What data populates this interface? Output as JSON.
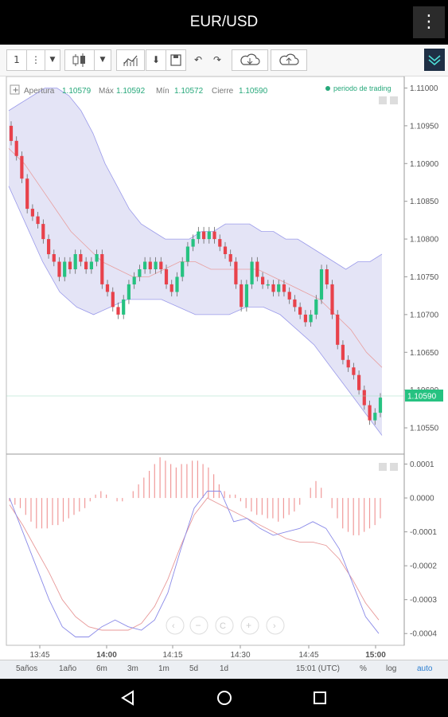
{
  "app": {
    "title": "EUR/USD",
    "menu_icon": "more-vertical-icon"
  },
  "toolbar": {
    "period_label": "1",
    "icons": [
      "period-button",
      "more-icon",
      "dropdown-icon",
      "candle-type-icon",
      "dropdown-icon",
      "indicators-icon",
      "download-icon",
      "save-icon",
      "undo-icon",
      "redo-icon",
      "cloud-download-icon",
      "cloud-upload-icon",
      "collapse-icon"
    ]
  },
  "ohlc": {
    "open_label": "Apertura",
    "open": "1.10579",
    "max_label": "Máx",
    "max": "1.10592",
    "min_label": "Mín",
    "min": "1.10572",
    "close_label": "Cierre",
    "close": "1.10590",
    "session_label": "periodo de trading"
  },
  "price_tag": "1.10590",
  "bottom": {
    "ranges": [
      "5años",
      "1año",
      "6m",
      "3m",
      "1m",
      "5d",
      "1d"
    ],
    "clock": "15:01 (UTC)",
    "percent": "%",
    "log": "log",
    "auto": "auto"
  },
  "colors": {
    "up": "#26c281",
    "down": "#e8424b",
    "band_fill": "#e4e4f6",
    "band_line": "#9b9bea",
    "middle_line": "#e8a0a0",
    "macd_line": "#8a8ae8",
    "signal_line": "#e89a9a",
    "hist": "#f09a9a",
    "price_tag_bg": "#26c281"
  },
  "chart_data": [
    {
      "type": "candlestick",
      "title": "",
      "x_ticks": [
        "13:45",
        "14:00",
        "14:15",
        "14:30",
        "14:45",
        "15:00"
      ],
      "y_ticks": [
        "1.11000",
        "1.10950",
        "1.10900",
        "1.10850",
        "1.10800",
        "1.10750",
        "1.10700",
        "1.10650",
        "1.10600",
        "1.10550"
      ],
      "ylim": [
        1.1053,
        1.1101
      ],
      "grid": false,
      "indicator": "Bollinger Bands",
      "closes": [
        1.1093,
        1.1091,
        1.1088,
        1.1084,
        1.1083,
        1.1082,
        1.108,
        1.1078,
        1.1077,
        1.1075,
        1.1077,
        1.1076,
        1.1078,
        1.1077,
        1.1076,
        1.1077,
        1.1078,
        1.1074,
        1.1073,
        1.1071,
        1.107,
        1.1072,
        1.1074,
        1.1075,
        1.1076,
        1.1077,
        1.1076,
        1.1077,
        1.1076,
        1.1074,
        1.1073,
        1.1075,
        1.1077,
        1.1079,
        1.108,
        1.1081,
        1.108,
        1.1081,
        1.108,
        1.1079,
        1.1078,
        1.1077,
        1.1074,
        1.1071,
        1.1074,
        1.1077,
        1.1075,
        1.1074,
        1.1074,
        1.1073,
        1.1074,
        1.1073,
        1.1072,
        1.1071,
        1.107,
        1.1069,
        1.107,
        1.1072,
        1.1076,
        1.1074,
        1.107,
        1.1066,
        1.1064,
        1.1063,
        1.1062,
        1.106,
        1.1058,
        1.1056,
        1.1057,
        1.1059
      ],
      "upper_band": [
        1.1097,
        1.1098,
        1.1099,
        1.11,
        1.11,
        1.1099,
        1.1097,
        1.1094,
        1.109,
        1.1087,
        1.1084,
        1.1082,
        1.1081,
        1.108,
        1.108,
        1.108,
        1.1081,
        1.1081,
        1.1082,
        1.1082,
        1.1082,
        1.1081,
        1.1081,
        1.108,
        1.108,
        1.1079,
        1.1078,
        1.1077,
        1.1076,
        1.1077,
        1.1077,
        1.1078
      ],
      "middle_band": [
        1.1092,
        1.109,
        1.1087,
        1.1084,
        1.1081,
        1.1079,
        1.1077,
        1.1076,
        1.1075,
        1.1075,
        1.1076,
        1.1077,
        1.1077,
        1.1076,
        1.1076,
        1.1076,
        1.1076,
        1.1075,
        1.1074,
        1.1073,
        1.1072,
        1.107,
        1.1068,
        1.1065,
        1.1063
      ],
      "lower_band": [
        1.1087,
        1.1082,
        1.1077,
        1.1073,
        1.1071,
        1.107,
        1.1071,
        1.1072,
        1.1072,
        1.1072,
        1.1071,
        1.107,
        1.107,
        1.107,
        1.1071,
        1.1071,
        1.107,
        1.1068,
        1.1066,
        1.1063,
        1.106,
        1.1057,
        1.1054
      ]
    },
    {
      "type": "line",
      "title": "",
      "indicator": "MACD",
      "y_ticks": [
        "0.0001",
        "0.0000",
        "-0.0001",
        "-0.0002",
        "-0.0003",
        "-0.0004"
      ],
      "ylim": [
        -0.00043,
        0.00012
      ],
      "grid": false,
      "macd": [
        0.0,
        -0.0001,
        -0.0002,
        -0.0003,
        -0.00038,
        -0.00041,
        -0.00041,
        -0.00038,
        -0.00036,
        -0.00038,
        -0.00039,
        -0.00036,
        -0.00028,
        -0.00015,
        -3e-05,
        2e-05,
        2e-05,
        -7e-05,
        -6e-05,
        -9e-05,
        -0.00011,
        -0.0001,
        -9e-05,
        -7e-05,
        -9e-05,
        -0.00015,
        -0.00025,
        -0.00035,
        -0.0004
      ],
      "signal": [
        -2e-05,
        -8e-05,
        -0.00015,
        -0.00022,
        -0.0003,
        -0.00035,
        -0.00038,
        -0.00039,
        -0.00039,
        -0.00039,
        -0.00037,
        -0.00032,
        -0.00024,
        -0.00014,
        -5e-05,
        0.0,
        -2e-05,
        -4e-05,
        -6e-05,
        -8e-05,
        -0.0001,
        -0.00012,
        -0.00013,
        -0.00013,
        -0.00014,
        -0.00018,
        -0.00024,
        -0.00031,
        -0.00036
      ],
      "histogram": [
        -1e-05,
        -2e-05,
        -3e-05,
        -5e-05,
        -7e-05,
        -9e-05,
        -9e-05,
        -9e-05,
        -8e-05,
        -8e-05,
        -7e-05,
        -6e-05,
        -5e-05,
        -4e-05,
        -3e-05,
        -1e-05,
        1e-05,
        2e-05,
        1e-05,
        0.0,
        -1e-05,
        -1e-05,
        0.0,
        2e-05,
        4e-05,
        6e-05,
        8e-05,
        0.0001,
        0.00012,
        0.00011,
        0.0001,
        9e-05,
        0.0001,
        0.0001,
        0.00011,
        0.00011,
        0.0001,
        9e-05,
        7e-05,
        4e-05,
        2e-05,
        1e-05,
        1e-05,
        -1e-05,
        -3e-05,
        -4e-05,
        -5e-05,
        -5e-05,
        -6e-05,
        -6e-05,
        -7e-05,
        -6e-05,
        -5e-05,
        -4e-05,
        -2e-05,
        0.0,
        3e-05,
        5e-05,
        3e-05,
        0.0,
        -3e-05,
        -6e-05,
        -9e-05,
        -0.0001,
        -0.00011,
        -0.00011,
        -0.0001,
        -9e-05,
        -8e-05,
        -6e-05
      ]
    }
  ]
}
